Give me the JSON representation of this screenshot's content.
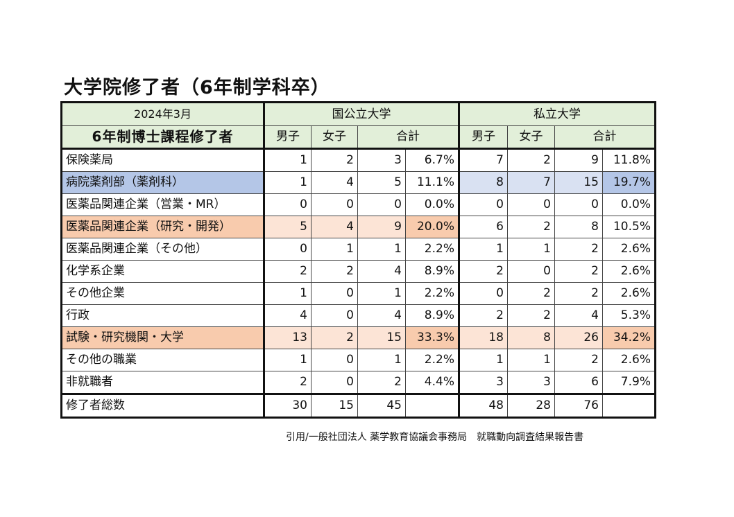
{
  "title": "大学院修了者（6年制学科卒）",
  "header": {
    "date": "2024年3月",
    "course": "6年制博士課程修了者",
    "group1": "国公立大学",
    "group2": "私立大学",
    "male": "男子",
    "female": "女子",
    "total": "合計"
  },
  "rows": [
    {
      "label": "保険薬局",
      "g1": [
        "1",
        "2",
        "3",
        "6.7%"
      ],
      "g2": [
        "7",
        "2",
        "9",
        "11.8%"
      ]
    },
    {
      "label": "病院薬剤部（薬剤科）",
      "g1": [
        "1",
        "4",
        "5",
        "11.1%"
      ],
      "g2": [
        "8",
        "7",
        "15",
        "19.7%"
      ]
    },
    {
      "label": "医薬品関連企業（営業・MR）",
      "g1": [
        "0",
        "0",
        "0",
        "0.0%"
      ],
      "g2": [
        "0",
        "0",
        "0",
        "0.0%"
      ]
    },
    {
      "label": "医薬品関連企業（研究・開発）",
      "g1": [
        "5",
        "4",
        "9",
        "20.0%"
      ],
      "g2": [
        "6",
        "2",
        "8",
        "10.5%"
      ]
    },
    {
      "label": "医薬品関連企業（その他）",
      "g1": [
        "0",
        "1",
        "1",
        "2.2%"
      ],
      "g2": [
        "1",
        "1",
        "2",
        "2.6%"
      ]
    },
    {
      "label": "化学系企業",
      "g1": [
        "2",
        "2",
        "4",
        "8.9%"
      ],
      "g2": [
        "2",
        "0",
        "2",
        "2.6%"
      ]
    },
    {
      "label": "その他企業",
      "g1": [
        "1",
        "0",
        "1",
        "2.2%"
      ],
      "g2": [
        "0",
        "2",
        "2",
        "2.6%"
      ]
    },
    {
      "label": "行政",
      "g1": [
        "4",
        "0",
        "4",
        "8.9%"
      ],
      "g2": [
        "2",
        "2",
        "4",
        "5.3%"
      ]
    },
    {
      "label": "試験・研究機関・大学",
      "g1": [
        "13",
        "2",
        "15",
        "33.3%"
      ],
      "g2": [
        "18",
        "8",
        "26",
        "34.2%"
      ]
    },
    {
      "label": "その他の職業",
      "g1": [
        "1",
        "0",
        "1",
        "2.2%"
      ],
      "g2": [
        "1",
        "1",
        "2",
        "2.6%"
      ]
    },
    {
      "label": "非就職者",
      "g1": [
        "2",
        "0",
        "2",
        "4.4%"
      ],
      "g2": [
        "3",
        "3",
        "6",
        "7.9%"
      ]
    }
  ],
  "totals": {
    "label": "修了者総数",
    "g1": [
      "30",
      "15",
      "45",
      ""
    ],
    "g2": [
      "48",
      "28",
      "76",
      ""
    ]
  },
  "source": "引用/一般社団法人 薬学教育協議会事務局　就職動向調査結果報告書",
  "colors": {
    "header_green": "#e2efd9",
    "highlight_blue_dark": "#b4c6e7",
    "highlight_blue_light": "#d9e1f2",
    "highlight_orange_dark": "#f8cbad",
    "highlight_orange_light": "#fce4d6"
  }
}
